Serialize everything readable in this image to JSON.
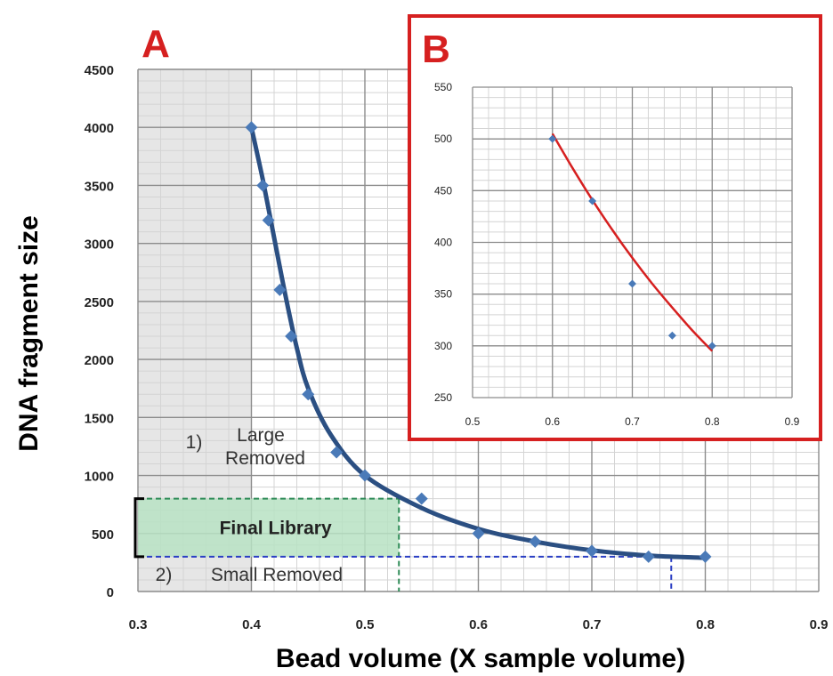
{
  "chart_data": [
    {
      "panel_label": "A",
      "type": "scatter",
      "xlabel": "Bead volume (X sample volume)",
      "ylabel": "DNA fragment size",
      "xlim": [
        0.3,
        0.9
      ],
      "ylim": [
        0,
        4500
      ],
      "x_ticks": [
        "0.3",
        "0.4",
        "0.5",
        "0.6",
        "0.7",
        "0.8",
        "0.9"
      ],
      "y_ticks": [
        "0",
        "500",
        "1000",
        "1500",
        "2000",
        "2500",
        "3000",
        "3500",
        "4000",
        "4500"
      ],
      "grid": true,
      "points": [
        {
          "x": 0.4,
          "y": 4000
        },
        {
          "x": 0.41,
          "y": 3500
        },
        {
          "x": 0.415,
          "y": 3200
        },
        {
          "x": 0.425,
          "y": 2600
        },
        {
          "x": 0.435,
          "y": 2200
        },
        {
          "x": 0.45,
          "y": 1700
        },
        {
          "x": 0.475,
          "y": 1200
        },
        {
          "x": 0.5,
          "y": 1000
        },
        {
          "x": 0.55,
          "y": 800
        },
        {
          "x": 0.6,
          "y": 500
        },
        {
          "x": 0.65,
          "y": 430
        },
        {
          "x": 0.7,
          "y": 350
        },
        {
          "x": 0.75,
          "y": 300
        },
        {
          "x": 0.8,
          "y": 300
        }
      ],
      "fit_curve": [
        {
          "x": 0.4,
          "y": 4000
        },
        {
          "x": 0.41,
          "y": 3550
        },
        {
          "x": 0.42,
          "y": 3050
        },
        {
          "x": 0.43,
          "y": 2550
        },
        {
          "x": 0.44,
          "y": 2100
        },
        {
          "x": 0.45,
          "y": 1750
        },
        {
          "x": 0.47,
          "y": 1350
        },
        {
          "x": 0.5,
          "y": 1000
        },
        {
          "x": 0.55,
          "y": 720
        },
        {
          "x": 0.6,
          "y": 540
        },
        {
          "x": 0.65,
          "y": 430
        },
        {
          "x": 0.7,
          "y": 355
        },
        {
          "x": 0.75,
          "y": 310
        },
        {
          "x": 0.8,
          "y": 290
        }
      ],
      "shaded_region": {
        "x_from": 0.3,
        "x_to": 0.4
      },
      "final_library": {
        "label": "Final Library",
        "x_from": 0.3,
        "x_to": 0.53,
        "y_from": 300,
        "y_to": 800
      },
      "small_cutoff_line": {
        "x_to": 0.77,
        "y": 300
      },
      "annotations": {
        "large_num": "1)",
        "large_l1": "Large",
        "large_l2": "Removed",
        "small_num": "2)",
        "small_text": "Small Removed"
      },
      "marker_color": "#4a7ab8",
      "curve_color": "#2b4f82",
      "shade_color": "#e6e6e6",
      "library_color": "#b7e2c3"
    },
    {
      "panel_label": "B",
      "type": "scatter",
      "xlim": [
        0.5,
        0.9
      ],
      "ylim": [
        250,
        550
      ],
      "x_ticks": [
        "0.5",
        "0.6",
        "0.7",
        "0.8",
        "0.9"
      ],
      "y_ticks": [
        "250",
        "300",
        "350",
        "400",
        "450",
        "500",
        "550"
      ],
      "grid": true,
      "points": [
        {
          "x": 0.6,
          "y": 500
        },
        {
          "x": 0.65,
          "y": 440
        },
        {
          "x": 0.7,
          "y": 360
        },
        {
          "x": 0.75,
          "y": 310
        },
        {
          "x": 0.8,
          "y": 300
        }
      ],
      "fit_curve": [
        {
          "x": 0.6,
          "y": 505
        },
        {
          "x": 0.625,
          "y": 472
        },
        {
          "x": 0.65,
          "y": 441
        },
        {
          "x": 0.675,
          "y": 412
        },
        {
          "x": 0.7,
          "y": 385
        },
        {
          "x": 0.725,
          "y": 360
        },
        {
          "x": 0.75,
          "y": 337
        },
        {
          "x": 0.775,
          "y": 315
        },
        {
          "x": 0.8,
          "y": 295
        }
      ],
      "marker_color": "#4a7ab8",
      "curve_color": "#d62020",
      "frame_color": "#d62020"
    }
  ]
}
